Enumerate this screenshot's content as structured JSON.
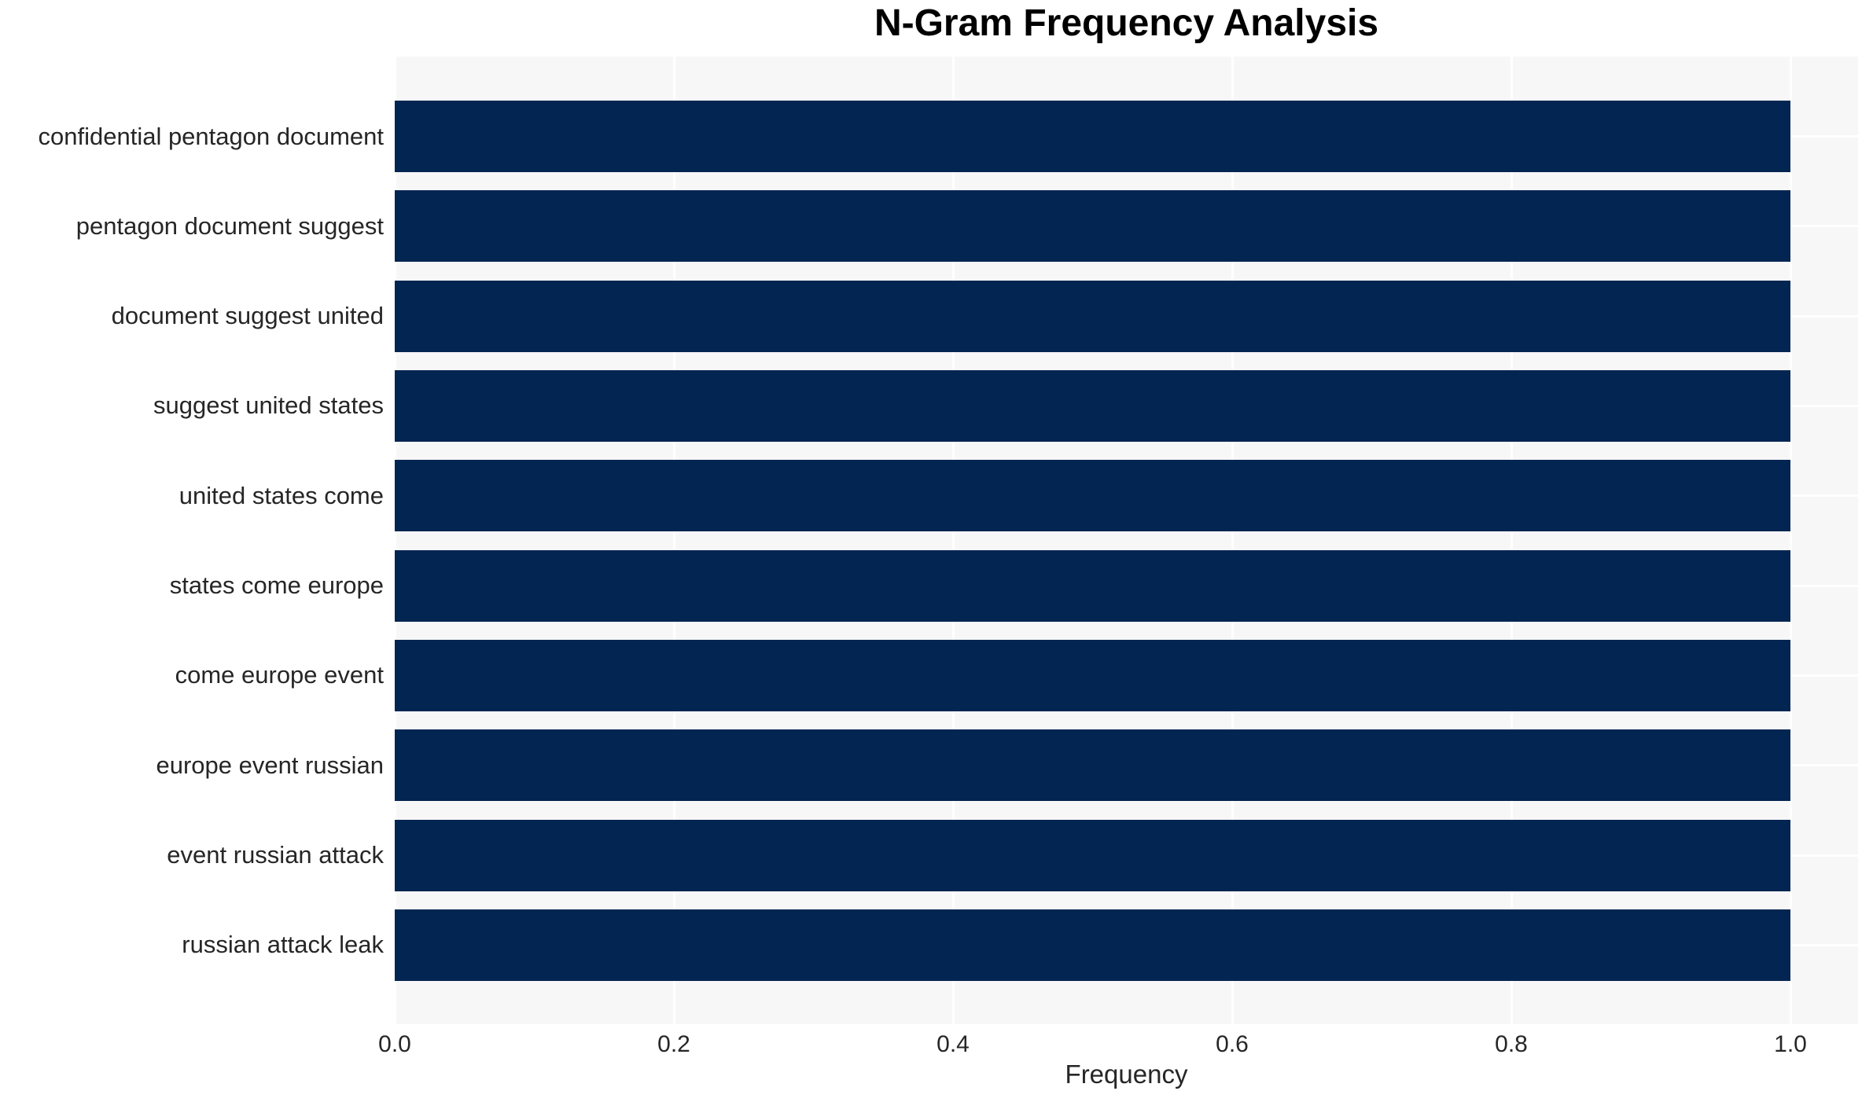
{
  "chart_data": {
    "type": "bar",
    "orientation": "horizontal",
    "title": "N-Gram Frequency Analysis",
    "xlabel": "Frequency",
    "ylabel": "",
    "categories": [
      "confidential pentagon document",
      "pentagon document suggest",
      "document suggest united",
      "suggest united states",
      "united states come",
      "states come europe",
      "come europe event",
      "europe event russian",
      "event russian attack",
      "russian attack leak"
    ],
    "values": [
      1.0,
      1.0,
      1.0,
      1.0,
      1.0,
      1.0,
      1.0,
      1.0,
      1.0,
      1.0
    ],
    "x_ticks": [
      0.0,
      0.2,
      0.4,
      0.6,
      0.8,
      1.0
    ],
    "x_tick_labels": [
      "0.0",
      "0.2",
      "0.4",
      "0.6",
      "0.8",
      "1.0"
    ],
    "xlim": [
      0.0,
      1.048
    ],
    "grid": true,
    "legend": false,
    "colors": {
      "bar": "#032552",
      "plot_background": "#f7f7f7",
      "gridline": "#ffffff",
      "tick_text": "#262626",
      "title_text": "#000000",
      "figure_background": "#ffffff"
    }
  }
}
